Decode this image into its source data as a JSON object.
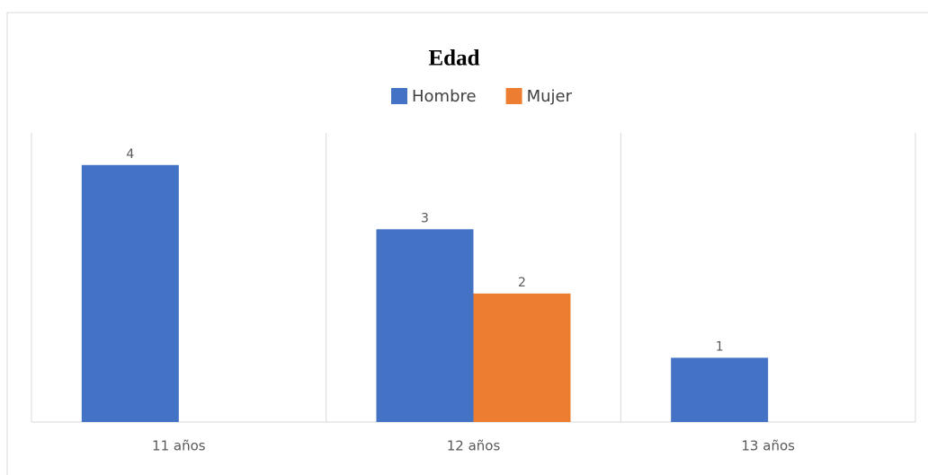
{
  "chart_data": {
    "type": "bar",
    "title": "Edad",
    "categories": [
      "11 años",
      "12 años",
      "13 años"
    ],
    "series": [
      {
        "name": "Hombre",
        "color": "#4472c4",
        "values": [
          4,
          3,
          1
        ]
      },
      {
        "name": "Mujer",
        "color": "#ed7d31",
        "values": [
          null,
          2,
          null
        ]
      }
    ],
    "ylim": [
      0,
      4.5
    ]
  }
}
